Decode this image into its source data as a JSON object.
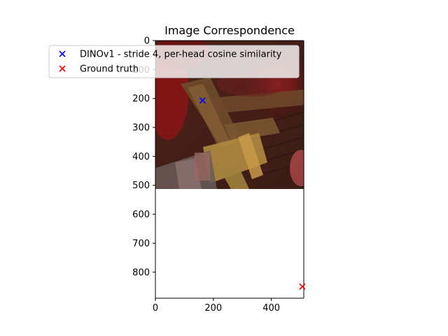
{
  "chart_data": {
    "type": "scatter",
    "title": "Image Correspondence",
    "xlabel": "",
    "ylabel": "",
    "xlim": [
      0,
      512
    ],
    "ylim": [
      890,
      0
    ],
    "y_inverted": true,
    "xticks": [
      0,
      200,
      400
    ],
    "yticks": [
      0,
      100,
      200,
      300,
      400,
      500,
      600,
      700,
      800
    ],
    "grid": false,
    "legend_position": "top-left",
    "background_image": {
      "description_free": true,
      "x_range": [
        0,
        512
      ],
      "y_range": [
        0,
        512
      ]
    },
    "series": [
      {
        "name": "DINOv1 - stride 4, per-head cosine similarity",
        "marker": "x",
        "color": "#0000ff",
        "points": [
          {
            "x": 163,
            "y": 207
          }
        ]
      },
      {
        "name": "Ground truth",
        "marker": "x",
        "color": "#ff0000",
        "points": [
          {
            "x": 507,
            "y": 850
          }
        ]
      }
    ]
  }
}
